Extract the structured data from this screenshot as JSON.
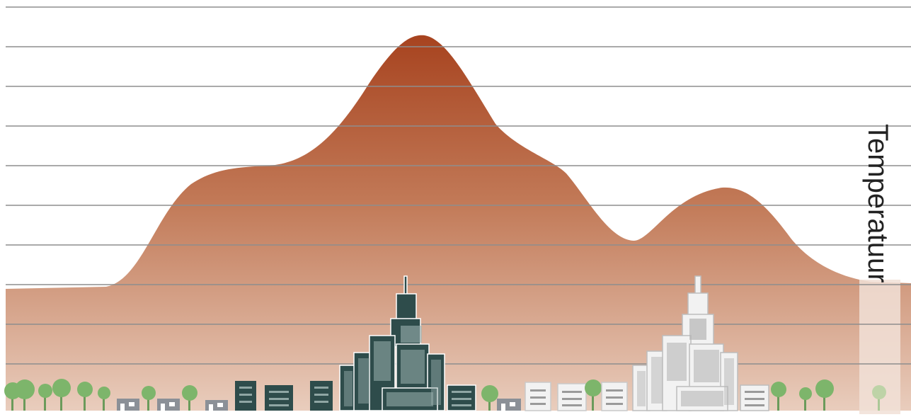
{
  "diagram": {
    "axis_label": "Temperatuur",
    "colors": {
      "curve_top": "#b24e2c",
      "curve_bottom": "#e8cbbb",
      "gridline": "#9a9a9a",
      "city_dark": "#2e4c4b",
      "city_light": "#f2f2f2",
      "tree": "#7cb56a",
      "house": "#8a8f96"
    },
    "zones": [
      "rural",
      "suburban",
      "downtown",
      "suburban",
      "park",
      "downtown",
      "rural"
    ]
  }
}
